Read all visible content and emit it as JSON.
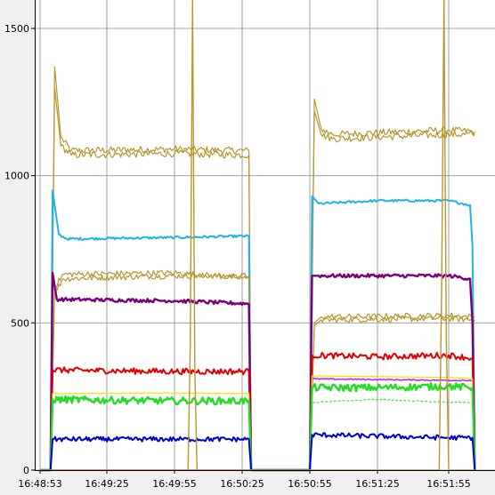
{
  "chart_data": {
    "type": "line",
    "title": "",
    "xlabel": "",
    "ylabel": "",
    "grid": true,
    "legend": "none",
    "x_ticks": [
      "16:48:53",
      "16:49:25",
      "16:49:55",
      "16:50:25",
      "16:50:55",
      "16:51:25",
      "16:51:55"
    ],
    "y_ticks": [
      "0",
      "500",
      "1000",
      "1500"
    ],
    "xlim": [
      "16:48:53",
      "16:52:05"
    ],
    "ylim": [
      0,
      1600
    ],
    "colors": {
      "plot_background": "#ffffff",
      "gridline": "#a0a0a0",
      "gold": "#b8962e",
      "cyan": "#1fb4e6",
      "purple": "#7a007a",
      "red": "#e00000",
      "green": "#22dd22",
      "yellow": "#e8e800",
      "blue": "#0000cc",
      "magenta": "#e000e0"
    },
    "series": [
      {
        "color_key": "gold",
        "width": 1.2,
        "noise": 12,
        "points": [
          [
            "16:48:53",
            0
          ],
          [
            "16:48:58",
            0
          ],
          [
            "16:49:00",
            1370
          ],
          [
            "16:49:03",
            1130
          ],
          [
            "16:49:08",
            1085
          ],
          [
            "16:49:55",
            1090
          ],
          [
            "16:50:28",
            1085
          ],
          [
            "16:50:29",
            0
          ],
          [
            "16:50:55",
            0
          ],
          [
            "16:50:57",
            1260
          ],
          [
            "16:51:00",
            1160
          ],
          [
            "16:51:05",
            1140
          ],
          [
            "16:51:55",
            1155
          ],
          [
            "16:52:06",
            1150
          ]
        ]
      },
      {
        "color_key": "gold",
        "width": 1.2,
        "noise": 12,
        "points": [
          [
            "16:48:53",
            0
          ],
          [
            "16:48:58",
            0
          ],
          [
            "16:49:00",
            1300
          ],
          [
            "16:49:03",
            1100
          ],
          [
            "16:49:08",
            1070
          ],
          [
            "16:49:55",
            1075
          ],
          [
            "16:50:28",
            1070
          ],
          [
            "16:50:29",
            0
          ],
          [
            "16:50:55",
            0
          ],
          [
            "16:50:57",
            1220
          ],
          [
            "16:51:00",
            1140
          ],
          [
            "16:51:05",
            1125
          ],
          [
            "16:51:55",
            1140
          ],
          [
            "16:52:06",
            1140
          ]
        ]
      },
      {
        "color_key": "cyan",
        "width": 2,
        "noise": 4,
        "points": [
          [
            "16:48:53",
            0
          ],
          [
            "16:48:58",
            0
          ],
          [
            "16:48:59",
            950
          ],
          [
            "16:49:02",
            800
          ],
          [
            "16:49:06",
            785
          ],
          [
            "16:49:55",
            790
          ],
          [
            "16:50:28",
            795
          ],
          [
            "16:50:29",
            0
          ],
          [
            "16:50:55",
            0
          ],
          [
            "16:50:56",
            930
          ],
          [
            "16:50:59",
            905
          ],
          [
            "16:51:25",
            915
          ],
          [
            "16:51:55",
            915
          ],
          [
            "16:52:04",
            900
          ],
          [
            "16:52:05",
            760
          ],
          [
            "16:52:06",
            0
          ]
        ]
      },
      {
        "color_key": "gold",
        "width": 1.2,
        "noise": 10,
        "points": [
          [
            "16:48:53",
            0
          ],
          [
            "16:48:58",
            0
          ],
          [
            "16:49:00",
            600
          ],
          [
            "16:49:04",
            650
          ],
          [
            "16:49:55",
            660
          ],
          [
            "16:50:28",
            660
          ],
          [
            "16:50:29",
            0
          ],
          [
            "16:50:55",
            0
          ],
          [
            "16:50:57",
            490
          ],
          [
            "16:51:00",
            510
          ],
          [
            "16:51:55",
            515
          ],
          [
            "16:52:06",
            510
          ]
        ]
      },
      {
        "color_key": "gold",
        "width": 1.2,
        "noise": 10,
        "points": [
          [
            "16:48:53",
            0
          ],
          [
            "16:48:58",
            0
          ],
          [
            "16:49:00",
            620
          ],
          [
            "16:49:04",
            665
          ],
          [
            "16:49:55",
            670
          ],
          [
            "16:50:28",
            650
          ],
          [
            "16:50:29",
            0
          ],
          [
            "16:50:55",
            0
          ],
          [
            "16:50:57",
            500
          ],
          [
            "16:51:00",
            520
          ],
          [
            "16:51:55",
            525
          ],
          [
            "16:52:06",
            520
          ]
        ]
      },
      {
        "color_key": "purple",
        "width": 2.4,
        "noise": 6,
        "points": [
          [
            "16:48:53",
            0
          ],
          [
            "16:48:58",
            0
          ],
          [
            "16:48:59",
            670
          ],
          [
            "16:49:01",
            580
          ],
          [
            "16:49:55",
            575
          ],
          [
            "16:50:28",
            565
          ],
          [
            "16:50:29",
            0
          ],
          [
            "16:50:55",
            0
          ],
          [
            "16:50:56",
            660
          ],
          [
            "16:50:59",
            660
          ],
          [
            "16:51:55",
            660
          ],
          [
            "16:52:04",
            650
          ],
          [
            "16:52:05",
            500
          ],
          [
            "16:52:06",
            0
          ]
        ]
      },
      {
        "color_key": "red",
        "width": 2,
        "noise": 10,
        "points": [
          [
            "16:48:53",
            0
          ],
          [
            "16:48:58",
            0
          ],
          [
            "16:48:59",
            340
          ],
          [
            "16:49:55",
            335
          ],
          [
            "16:50:28",
            335
          ],
          [
            "16:50:29",
            0
          ],
          [
            "16:50:55",
            0
          ],
          [
            "16:50:56",
            390
          ],
          [
            "16:51:25",
            385
          ],
          [
            "16:51:55",
            390
          ],
          [
            "16:52:05",
            380
          ],
          [
            "16:52:06",
            0
          ]
        ]
      },
      {
        "color_key": "magenta",
        "width": 1.4,
        "noise": 2,
        "points": [
          [
            "16:48:53",
            0
          ],
          [
            "16:50:55",
            0
          ],
          [
            "16:50:56",
            310
          ],
          [
            "16:51:55",
            305
          ],
          [
            "16:52:05",
            305
          ],
          [
            "16:52:06",
            0
          ]
        ]
      },
      {
        "color_key": "yellow",
        "width": 1.2,
        "noise": 1,
        "points": [
          [
            "16:48:53",
            0
          ],
          [
            "16:48:58",
            0
          ],
          [
            "16:48:59",
            260
          ],
          [
            "16:49:55",
            262
          ],
          [
            "16:50:28",
            260
          ],
          [
            "16:50:29",
            0
          ],
          [
            "16:50:55",
            0
          ],
          [
            "16:50:56",
            320
          ],
          [
            "16:51:55",
            315
          ],
          [
            "16:52:05",
            310
          ],
          [
            "16:52:06",
            0
          ]
        ]
      },
      {
        "color_key": "green",
        "width": 2.4,
        "noise": 12,
        "points": [
          [
            "16:48:53",
            0
          ],
          [
            "16:48:58",
            0
          ],
          [
            "16:48:59",
            240
          ],
          [
            "16:49:55",
            235
          ],
          [
            "16:50:28",
            235
          ],
          [
            "16:50:29",
            0
          ],
          [
            "16:50:55",
            0
          ],
          [
            "16:50:56",
            280
          ],
          [
            "16:51:25",
            280
          ],
          [
            "16:51:55",
            285
          ],
          [
            "16:52:05",
            280
          ],
          [
            "16:52:06",
            0
          ]
        ]
      },
      {
        "color_key": "green",
        "width": 1,
        "noise": 2,
        "dashed": true,
        "points": [
          [
            "16:48:53",
            0
          ],
          [
            "16:50:55",
            0
          ],
          [
            "16:50:56",
            230
          ],
          [
            "16:51:25",
            240
          ],
          [
            "16:51:55",
            230
          ],
          [
            "16:52:05",
            230
          ],
          [
            "16:52:06",
            0
          ]
        ]
      },
      {
        "color_key": "blue",
        "width": 2,
        "noise": 8,
        "points": [
          [
            "16:48:53",
            0
          ],
          [
            "16:48:58",
            0
          ],
          [
            "16:48:59",
            105
          ],
          [
            "16:49:55",
            105
          ],
          [
            "16:50:28",
            105
          ],
          [
            "16:50:29",
            0
          ],
          [
            "16:50:55",
            0
          ],
          [
            "16:50:56",
            120
          ],
          [
            "16:51:55",
            110
          ],
          [
            "16:52:05",
            110
          ],
          [
            "16:52:06",
            0
          ]
        ]
      },
      {
        "color_key": "gold",
        "width": 1.4,
        "noise": 0,
        "points": [
          [
            "16:48:53",
            0
          ],
          [
            "16:49:55",
            0
          ],
          [
            "16:50:01",
            0
          ],
          [
            "16:50:02",
            420
          ],
          [
            "16:50:03",
            1600
          ],
          [
            "16:50:04",
            350
          ],
          [
            "16:50:05",
            0
          ],
          [
            "16:51:51",
            0
          ],
          [
            "16:51:52",
            600
          ],
          [
            "16:51:53",
            1600
          ],
          [
            "16:51:54",
            450
          ],
          [
            "16:51:55",
            0
          ],
          [
            "16:52:06",
            0
          ]
        ]
      }
    ]
  }
}
